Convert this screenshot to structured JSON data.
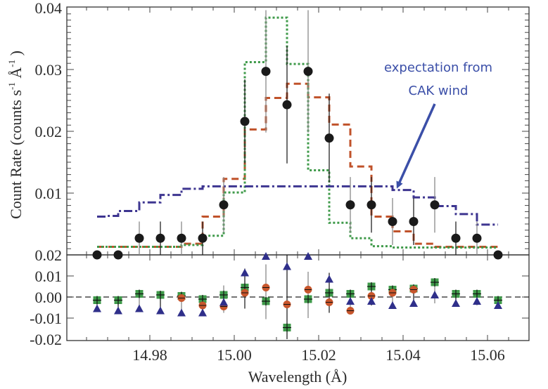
{
  "chart_data": {
    "type": "line",
    "title": "",
    "xlabel": "Wavelength (Å)",
    "ylabel": "Count Rate (counts s⁻¹ Å⁻¹ )",
    "ylabel_parts": {
      "main": "Count Rate (counts s",
      "sup1": "-1",
      "mid": " Å",
      "sup2": "-1",
      "end": " )"
    },
    "xlim": [
      14.955,
      15.072
    ],
    "grid": false,
    "legend": "none",
    "x_ticks": [
      14.98,
      15.0,
      15.02,
      15.04,
      15.06
    ],
    "x_tick_labels": [
      "14.98",
      "15.00",
      "15.02",
      "15.04",
      "15.06"
    ],
    "annotation": {
      "lines": [
        "expectation from",
        "CAK wind"
      ],
      "color": "#3b4fa8",
      "points_to": {
        "x": 15.038,
        "y": 0.0105
      }
    },
    "panels": [
      {
        "name": "spectrum",
        "ylim": [
          0,
          0.04
        ],
        "y_ticks": [
          0.01,
          0.02,
          0.03,
          0.04
        ],
        "y_tick_labels": [
          "0.01",
          "0.02",
          "0.03",
          "0.04"
        ],
        "data": {
          "name": "observed",
          "color": "#1a1a1a",
          "x": [
            14.9675,
            14.9725,
            14.9775,
            14.9825,
            14.9875,
            14.9925,
            14.9975,
            15.0025,
            15.0075,
            15.0125,
            15.0175,
            15.0225,
            15.0275,
            15.0325,
            15.0375,
            15.0425,
            15.0475,
            15.0525,
            15.0575,
            15.0625
          ],
          "y": [
            0.0,
            0.0,
            0.0027,
            0.0027,
            0.0027,
            0.0027,
            0.0081,
            0.0216,
            0.0297,
            0.0243,
            0.0297,
            0.0189,
            0.0081,
            0.0081,
            0.0054,
            0.0054,
            0.0081,
            0.0027,
            0.0027,
            0.0
          ],
          "err": [
            0.0,
            0.0,
            0.0027,
            0.0027,
            0.0027,
            0.0027,
            0.0045,
            0.0068,
            0.0099,
            0.0095,
            0.0099,
            0.0072,
            0.0045,
            0.0045,
            0.0038,
            0.0038,
            0.0045,
            0.0027,
            0.0027,
            0.0
          ]
        },
        "models": [
          {
            "name": "model-dashed",
            "style": "dashed",
            "color": "#c0522a",
            "bin_edges": [
              14.9675,
              14.9875,
              14.9925,
              14.9975,
              15.0025,
              15.0075,
              15.0125,
              15.0175,
              15.0225,
              15.0275,
              15.0325,
              15.0375,
              15.0425,
              15.0475,
              15.0625
            ],
            "values": [
              0.0013,
              0.0018,
              0.0062,
              0.0123,
              0.0203,
              0.0254,
              0.0277,
              0.0255,
              0.0211,
              0.0143,
              0.0062,
              0.0038,
              0.0018,
              0.0013
            ]
          },
          {
            "name": "model-dotted",
            "style": "dotted",
            "color": "#3f9a4a",
            "bin_edges": [
              14.9675,
              14.9875,
              14.9925,
              14.9975,
              15.0025,
              15.0075,
              15.0125,
              15.0175,
              15.0225,
              15.0275,
              15.0325,
              15.0375,
              15.0625
            ],
            "values": [
              0.0013,
              0.0016,
              0.0031,
              0.0101,
              0.0312,
              0.0384,
              0.0309,
              0.0137,
              0.0052,
              0.0027,
              0.0014,
              0.0012
            ]
          },
          {
            "name": "CAK wind",
            "style": "dash-dot",
            "color": "#3d3590",
            "bin_edges": [
              14.9675,
              14.97,
              14.9725,
              14.9775,
              14.9825,
              14.9875,
              14.9925,
              15.0375,
              15.0425,
              15.0475,
              15.0525,
              15.0575,
              15.0625
            ],
            "values": [
              0.0062,
              0.0063,
              0.0071,
              0.0085,
              0.0097,
              0.0107,
              0.0111,
              0.0105,
              0.0093,
              0.0079,
              0.0066,
              0.0049
            ]
          }
        ]
      },
      {
        "name": "residuals",
        "ylim": [
          -0.02,
          0.02
        ],
        "y_ticks": [
          0.02,
          0.01,
          0.0,
          -0.01,
          -0.02
        ],
        "y_tick_labels": [
          "0.02",
          "0.01",
          "0.00",
          "-0.01",
          "-0.02"
        ],
        "reference_line": 0.0,
        "series": [
          {
            "name": "residual-dotted-model",
            "marker": "square",
            "color": "#3f9a4a",
            "x": [
              14.9675,
              14.9725,
              14.9775,
              14.9825,
              14.9875,
              14.9925,
              14.9975,
              15.0025,
              15.0075,
              15.0125,
              15.0175,
              15.0225,
              15.0275,
              15.0325,
              15.0375,
              15.0425,
              15.0475,
              15.0525,
              15.0575,
              15.0625
            ],
            "y": [
              -0.0015,
              -0.0015,
              0.0015,
              0.001,
              0.0005,
              -0.001,
              0.001,
              0.0045,
              -0.002,
              -0.0145,
              -0.001,
              0.002,
              0.0015,
              0.005,
              0.0035,
              0.004,
              0.007,
              0.0015,
              0.0015,
              -0.0015
            ]
          },
          {
            "name": "residual-dashed-model",
            "marker": "circle",
            "color": "#c8562c",
            "x": [
              14.9875,
              14.9925,
              14.9975,
              15.0025,
              15.0075,
              15.0125,
              15.0175,
              15.0225,
              15.0275,
              15.0325,
              15.0375,
              15.0425
            ],
            "y": [
              -0.0005,
              -0.004,
              -0.0045,
              0.002,
              0.0045,
              -0.0035,
              0.0035,
              -0.0025,
              -0.0065,
              0.0005,
              0.002,
              0.0035
            ]
          },
          {
            "name": "residual-CAK-wind",
            "marker": "triangle",
            "color": "#2f2f8a",
            "x": [
              14.9675,
              14.9725,
              14.9775,
              14.9825,
              14.9875,
              14.9925,
              14.9975,
              15.0025,
              15.0075,
              15.0125,
              15.0175,
              15.0225,
              15.0275,
              15.0325,
              15.0375,
              15.0425,
              15.0475,
              15.0525,
              15.0575,
              15.0625
            ],
            "y": [
              -0.0055,
              -0.0065,
              -0.0055,
              -0.0065,
              -0.0075,
              -0.0075,
              -0.0025,
              0.0115,
              0.02,
              0.0145,
              0.02,
              0.0085,
              -0.002,
              -0.002,
              -0.004,
              -0.003,
              0.001,
              -0.003,
              -0.002,
              -0.004
            ]
          }
        ],
        "errors": {
          "x": [
            14.9675,
            14.9725,
            14.9775,
            14.9825,
            14.9875,
            14.9925,
            14.9975,
            15.0025,
            15.0075,
            15.0125,
            15.0175,
            15.0225,
            15.0275,
            15.0325,
            15.0375,
            15.0425,
            15.0475,
            15.0525,
            15.0575,
            15.0625
          ],
          "center": [
            -0.003,
            -0.004,
            -0.002,
            -0.003,
            -0.003,
            -0.004,
            -0.001,
            0.004,
            0.0025,
            0.001,
            0.001,
            0.002,
            -0.0015,
            0.001,
            0.0005,
            0.0005,
            0.002,
            -0.0005,
            -0.0005,
            -0.0025
          ],
          "half": [
            0.0025,
            0.0025,
            0.0035,
            0.0035,
            0.0035,
            0.0035,
            0.0065,
            0.0095,
            0.013,
            0.021,
            0.011,
            0.0095,
            0.005,
            0.005,
            0.0045,
            0.0045,
            0.005,
            0.0035,
            0.0035,
            0.0015
          ]
        }
      }
    ]
  }
}
